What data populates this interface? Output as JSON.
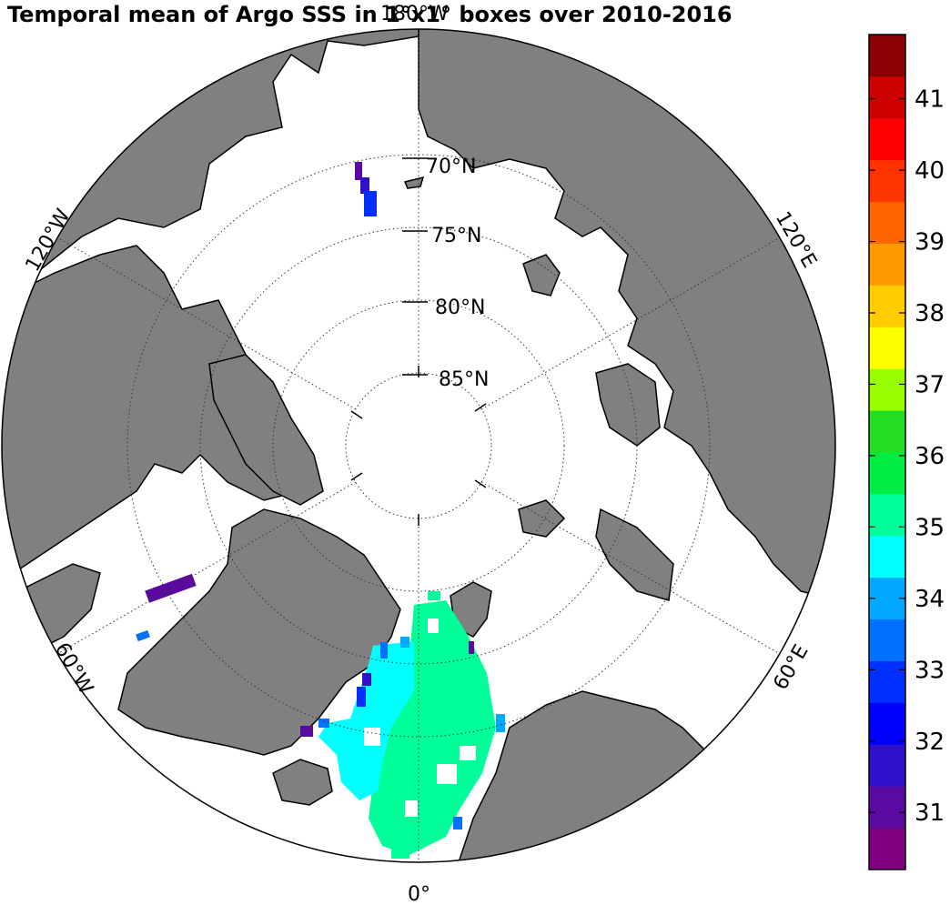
{
  "title": "Temporal mean of Argo SSS in 1°x1° boxes over 2010-2016",
  "map": {
    "projection": "north-polar-stereographic",
    "latitude_labels": [
      "70°N",
      "75°N",
      "80°N",
      "85°N"
    ],
    "longitude_labels": [
      "180°W",
      "120°W",
      "60°W",
      "0°",
      "60°E",
      "120°E"
    ],
    "land_color": "#808080",
    "ocean_color": "#ffffff"
  },
  "colorbar": {
    "min": 30.2,
    "max": 41.9,
    "tick_labels": [
      "31",
      "32",
      "33",
      "34",
      "35",
      "36",
      "37",
      "38",
      "39",
      "40",
      "41"
    ],
    "colors": [
      "#800080",
      "#5a0aa0",
      "#3010c8",
      "#0000ff",
      "#0030ff",
      "#0070ff",
      "#00a8ff",
      "#00ffff",
      "#00ff99",
      "#00ee44",
      "#22dd22",
      "#99ff00",
      "#ffff00",
      "#ffcc00",
      "#ff9900",
      "#ff6600",
      "#ff3300",
      "#ff0000",
      "#cc0000",
      "#8b0000"
    ]
  }
}
